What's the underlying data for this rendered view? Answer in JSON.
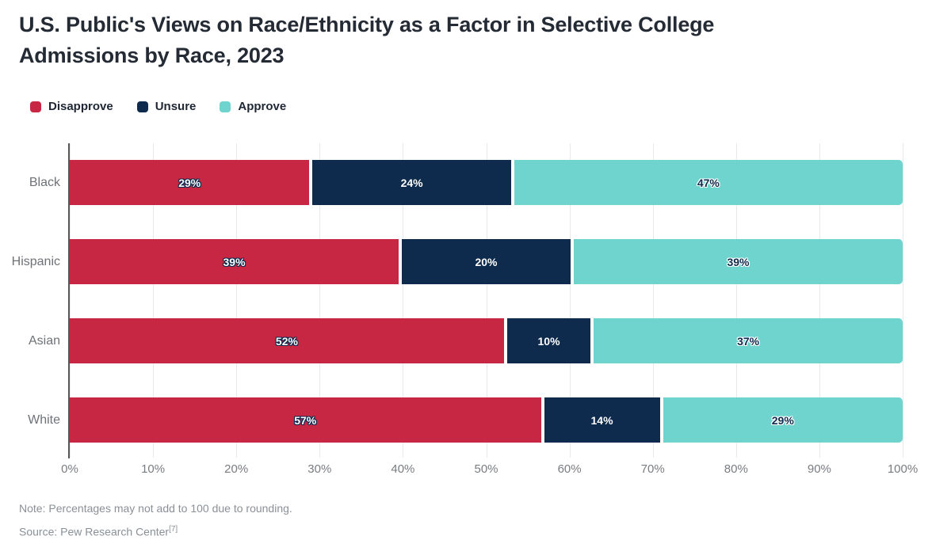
{
  "title": {
    "line1": "U.S. Public's Views on Race/Ethnicity as a Factor in Selective College",
    "line2": "Admissions by Race, 2023"
  },
  "chart_data": {
    "type": "bar",
    "orientation": "horizontal-stacked",
    "title": "U.S. Public's Views on Race/Ethnicity as a Factor in Selective College Admissions by Race, 2023",
    "categories": [
      "Black",
      "Hispanic",
      "Asian",
      "White"
    ],
    "series": [
      {
        "name": "Disapprove",
        "color": "#C72742",
        "values": [
          29,
          39,
          52,
          57
        ]
      },
      {
        "name": "Unsure",
        "color": "#0E2A4D",
        "values": [
          24,
          20,
          10,
          14
        ]
      },
      {
        "name": "Approve",
        "color": "#6FD3CE",
        "values": [
          47,
          39,
          37,
          29
        ]
      }
    ],
    "value_suffix": "%",
    "xlabel": "",
    "ylabel": "",
    "xlim": [
      0,
      100
    ],
    "x_ticks": [
      "0%",
      "10%",
      "20%",
      "30%",
      "40%",
      "50%",
      "60%",
      "70%",
      "80%",
      "90%",
      "100%"
    ],
    "grid": "vertical",
    "legend_position": "top-left",
    "axis_color": "#57585A",
    "gridline_color": "#E8E9EA",
    "label_text_colors": {
      "on_dark": "#FFFFFF",
      "on_light": "#0E2A4D"
    }
  },
  "footer": {
    "note": "Note: Percentages may not add to 100 due to rounding.",
    "source": "Source: Pew Research Center",
    "source_ref": "[7]"
  }
}
